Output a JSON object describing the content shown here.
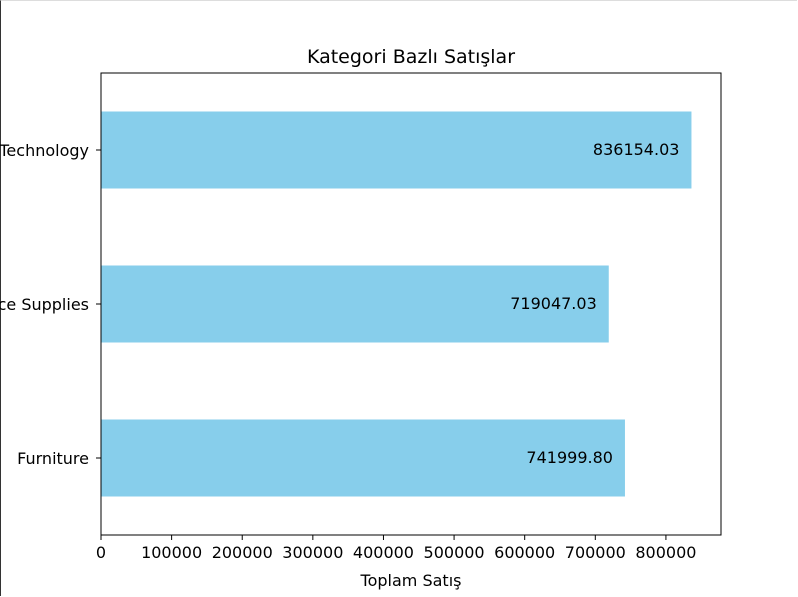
{
  "chart_data": {
    "type": "bar",
    "orientation": "horizontal",
    "title": "Kategori Bazlı Satışlar",
    "xlabel": "Toplam Satış",
    "ylabel": "",
    "categories": [
      "Furniture",
      "Office Supplies",
      "Technology"
    ],
    "values": [
      741999.8,
      719047.03,
      836154.03
    ],
    "data_labels": [
      "741999.80",
      "719047.03",
      "836154.03"
    ],
    "xlim": [
      0,
      878000
    ],
    "xticks": [
      0,
      100000,
      200000,
      300000,
      400000,
      500000,
      600000,
      700000,
      800000
    ],
    "xtick_labels": [
      "0",
      "100000",
      "200000",
      "300000",
      "400000",
      "500000",
      "600000",
      "700000",
      "800000"
    ],
    "bar_color": "#87CEEB",
    "grid": false,
    "legend": "none"
  }
}
